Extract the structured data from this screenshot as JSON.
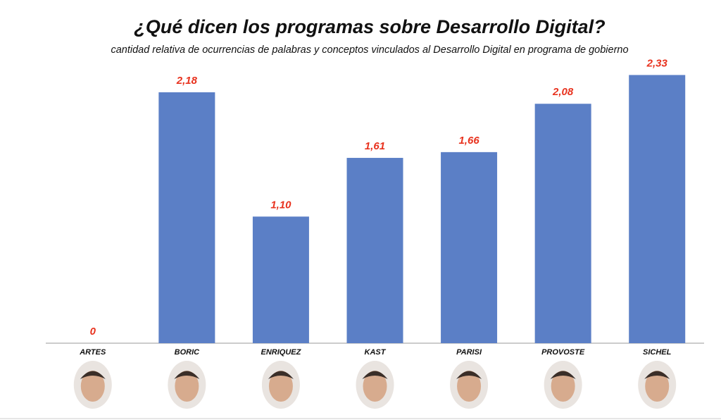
{
  "chart_data": {
    "type": "bar",
    "title": "¿Qué dicen los programas sobre Desarrollo Digital?",
    "subtitle": "cantidad relativa de ocurrencias de palabras y conceptos vinculados al Desarrollo Digital en programa de gobierno",
    "categories": [
      "ARTES",
      "BORIC",
      "ENRIQUEZ",
      "KAST",
      "PARISI",
      "PROVOSTE",
      "SICHEL"
    ],
    "values": [
      0,
      2.18,
      1.1,
      1.61,
      1.66,
      2.08,
      2.33
    ],
    "value_labels": [
      "0",
      "2,18",
      "1,10",
      "1,61",
      "1,66",
      "2,08",
      "2,33"
    ],
    "color": "#5b7fc6",
    "label_color": "#e8321e",
    "ylim": [
      0,
      2.4
    ]
  }
}
